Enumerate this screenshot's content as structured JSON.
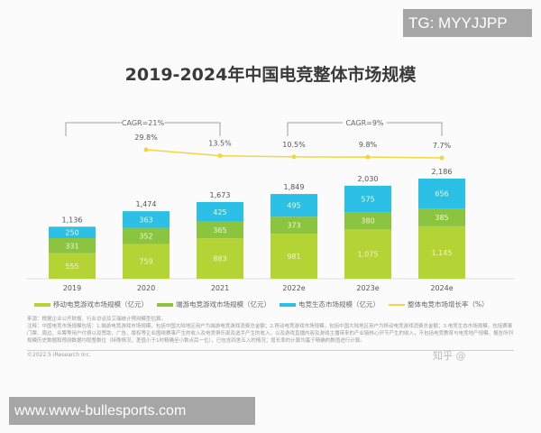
{
  "watermark_top": "TG: MYYJJPP",
  "watermark_bottom": "www.www-bullesports.com",
  "zhihu_watermark": "知乎 @",
  "colors": {
    "mobile": "#b4d335",
    "pc": "#8bc540",
    "ecosystem": "#2cc0e6",
    "growth": "#f3d63d"
  },
  "chart_data": {
    "type": "bar",
    "stacked": true,
    "title": "2019-2024年中国电竞整体市场规模",
    "categories": [
      "2019",
      "2020",
      "2021",
      "2022e",
      "2023e",
      "2024e"
    ],
    "series": [
      {
        "name": "移动电竞游戏市场规模（亿元）",
        "values": [
          555,
          759,
          883,
          981,
          1075,
          1145
        ]
      },
      {
        "name": "端游电竞游戏市场规模（亿元）",
        "values": [
          331,
          352,
          365,
          373,
          380,
          385
        ]
      },
      {
        "name": "电竞生态市场规模（亿元）",
        "values": [
          250,
          363,
          425,
          495,
          575,
          656
        ]
      }
    ],
    "totals": [
      "1,136",
      "1,474",
      "1,673",
      "1,849",
      "2,030",
      "2,186"
    ],
    "line": {
      "name": "整体电竞市场增长率（%）",
      "values": [
        null,
        29.8,
        13.5,
        10.5,
        9.8,
        7.7
      ],
      "labels": [
        "",
        "29.8%",
        "13.5%",
        "10.5%",
        "9.8%",
        "7.7%"
      ]
    },
    "annotations": [
      {
        "text": "CAGR=21%",
        "from": "2019",
        "to": "2021"
      },
      {
        "text": "CAGR=9%",
        "from": "2022e",
        "to": "2024e"
      }
    ],
    "legend": "bottom",
    "grid": false
  },
  "source": "来源：根据企业公开财报、行业访谈及艾瑞统计预测模型估算。",
  "note": "注释：中国电竞市场规模包括：1.端游电竞游戏市场规模，包括中国大陆地区用户为端游电竞游戏消费总金额；2.移动电竞游戏市场规模，包括中国大陆地区用户为移动电竞游戏消费总金额；3.电竞生态市场规模，包括赛事门票、周边、众筹等用户付费以及赞助、广告、版权等企业围绕赛事产生的收入及电竞俱乐部及选手产生的收入，以及游戏直播内容及游戏主播带来的产业链核心环节产生的收入，不包括电竞教育与电竞地产规模。报告所列规模历史数据和预测数据均取整数位（特殊情况，差值小于1时精确至小数点后一位），已包含四舍五入的情况；增长率的计算均基于精确的数值进行计算。",
  "copyright": "©2022.5 iResearch Inc."
}
